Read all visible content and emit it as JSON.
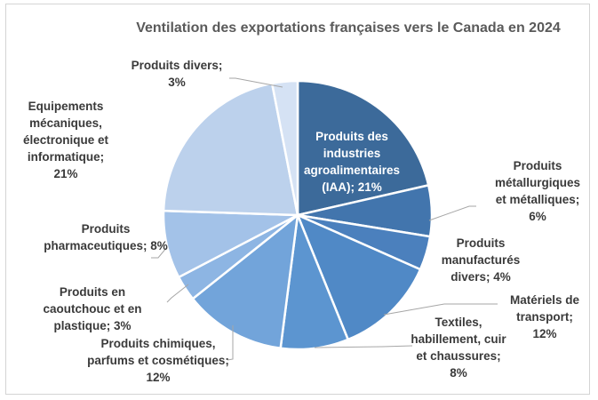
{
  "chart_data": {
    "type": "pie",
    "title": "Ventilation des exportations françaises vers le Canada en 2024",
    "unit": "%",
    "slices": [
      {
        "label": "Produits des industries agroalimentaires (IAA)",
        "value": 21,
        "color": "#3c6a9a",
        "label_lines": [
          "Produits des",
          "industries",
          "agroalimentaires",
          "(IAA); 21%"
        ]
      },
      {
        "label": "Produits métallurgiques et métalliques",
        "value": 6,
        "color": "#4275ad",
        "label_lines": [
          "Produits",
          "métallurgiques",
          "et métalliques;",
          "6%"
        ]
      },
      {
        "label": "Produits manufacturés divers",
        "value": 4,
        "color": "#4b80bd",
        "label_lines": [
          "Produits",
          "manufacturés",
          "divers; 4%"
        ]
      },
      {
        "label": "Matériels de transport",
        "value": 12,
        "color": "#5089c6",
        "label_lines": [
          "Matériels de",
          "transport;",
          "12%"
        ]
      },
      {
        "label": "Textiles, habillement, cuir et chaussures",
        "value": 8,
        "color": "#5c95d0",
        "label_lines": [
          "Textiles,",
          "habillement, cuir",
          "et chaussures;",
          "8%"
        ]
      },
      {
        "label": "Produits chimiques, parfums et cosmétiques",
        "value": 12,
        "color": "#72a4da",
        "label_lines": [
          "Produits chimiques,",
          "parfums et cosmétiques;",
          "12%"
        ]
      },
      {
        "label": "Produits en caoutchouc et en plastique",
        "value": 3,
        "color": "#8db5e3",
        "label_lines": [
          "Produits en",
          "caoutchouc et en",
          "plastique; 3%"
        ]
      },
      {
        "label": "Produits pharmaceutiques",
        "value": 8,
        "color": "#a3c2e8",
        "label_lines": [
          "Produits",
          "pharmaceutiques; 8%"
        ]
      },
      {
        "label": "Equipements mécaniques, électronique et informatique",
        "value": 21,
        "color": "#bcd1ec",
        "label_lines": [
          "Equipements",
          "mécaniques,",
          "électronique et",
          "informatique;",
          "21%"
        ]
      },
      {
        "label": "Produits divers",
        "value": 3,
        "color": "#d5e2f4",
        "label_lines": [
          "Produits divers;",
          "3%"
        ]
      }
    ],
    "legend": "none",
    "start_angle": "12 o'clock, clockwise"
  }
}
